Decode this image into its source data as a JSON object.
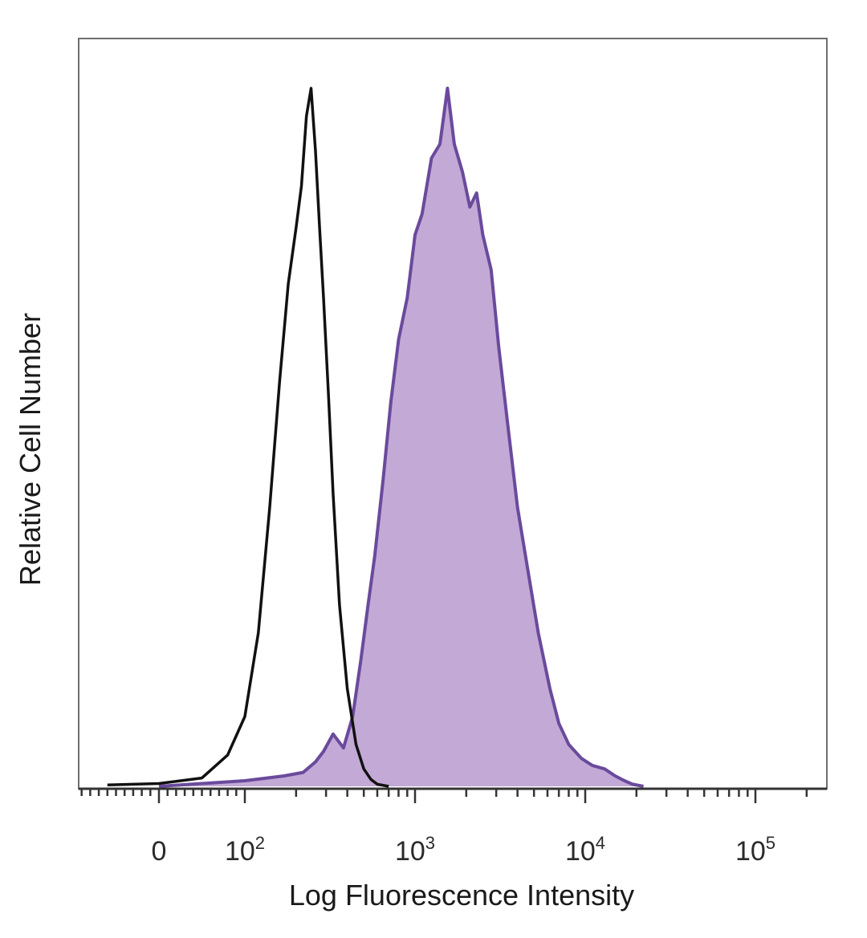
{
  "chart_data": {
    "type": "area",
    "xlabel": "Log Fluorescence Intensity",
    "ylabel": "Relative Cell Number",
    "x_scale": "biexponential",
    "x_ticks": [
      {
        "value": 0,
        "base": "0",
        "exp": ""
      },
      {
        "value": 100,
        "base": "10",
        "exp": "2"
      },
      {
        "value": 1000,
        "base": "10",
        "exp": "3"
      },
      {
        "value": 10000,
        "base": "10",
        "exp": "4"
      },
      {
        "value": 100000,
        "base": "10",
        "exp": "5"
      }
    ],
    "ylim": [
      0,
      100
    ],
    "grid": false,
    "legend": "none",
    "series": [
      {
        "style": "outline",
        "color": "#111111",
        "x": [
          -60,
          0,
          50,
          80,
          100,
          120,
          140,
          160,
          180,
          200,
          215,
          230,
          245,
          260,
          275,
          290,
          310,
          330,
          360,
          400,
          450,
          500,
          550,
          600,
          700
        ],
        "y": [
          0.2,
          0.4,
          1.2,
          4.5,
          10,
          22,
          40,
          58,
          72,
          80,
          86,
          96,
          100,
          91,
          80,
          70,
          56,
          42,
          26,
          14,
          6,
          2.5,
          1,
          0.3,
          0
        ]
      },
      {
        "style": "filled",
        "color": "#6a4a9c",
        "fill": "#c3a9d6",
        "x": [
          0,
          100,
          170,
          220,
          260,
          290,
          330,
          380,
          430,
          480,
          530,
          580,
          650,
          720,
          800,
          900,
          1000,
          1100,
          1250,
          1400,
          1550,
          1700,
          1900,
          2100,
          2300,
          2500,
          2800,
          3100,
          3500,
          4000,
          4600,
          5300,
          6200,
          7000,
          8000,
          9500,
          11000,
          13000,
          15000,
          17000,
          19000,
          22000
        ],
        "y": [
          0,
          0.8,
          1.5,
          2,
          3.5,
          5,
          7.5,
          5.5,
          10,
          18,
          26,
          33,
          44,
          55,
          64,
          70,
          79,
          82,
          90,
          92,
          100,
          92,
          88,
          83,
          85,
          79,
          74,
          63,
          52,
          40,
          31,
          22,
          14,
          9,
          6,
          4,
          3,
          2.5,
          1.5,
          0.8,
          0.3,
          0
        ]
      }
    ]
  }
}
